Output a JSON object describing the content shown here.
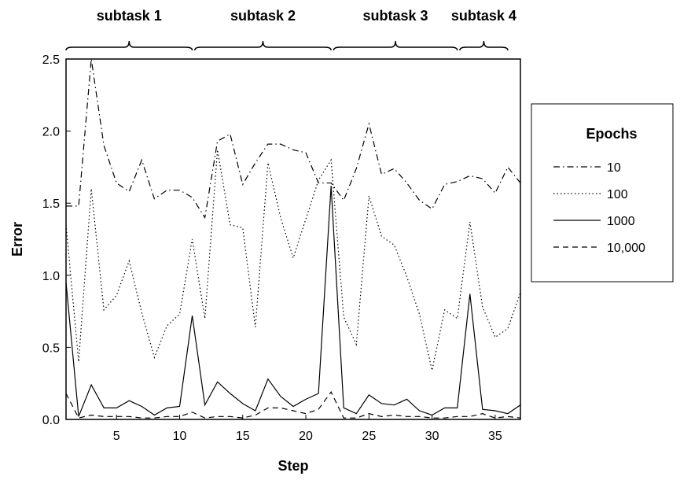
{
  "chart_data": {
    "type": "line",
    "xlabel": "Step",
    "ylabel": "Error",
    "xlim": [
      1,
      37
    ],
    "ylim": [
      0.0,
      2.5
    ],
    "xticks": [
      5,
      10,
      15,
      20,
      25,
      30,
      35
    ],
    "yticks": [
      0.0,
      0.5,
      1.0,
      1.5,
      2.0,
      2.5
    ],
    "ytick_labels": [
      "0.0",
      "0.5",
      "1.0",
      "1.5",
      "2.0",
      "2.5"
    ],
    "grid": false,
    "legend": {
      "title": "Epochs",
      "position": "right"
    },
    "subtasks": [
      {
        "label": "subtask 1",
        "start": 1,
        "end": 11
      },
      {
        "label": "subtask 2",
        "start": 11.2,
        "end": 22
      },
      {
        "label": "subtask 3",
        "start": 22.2,
        "end": 32
      },
      {
        "label": "subtask 4",
        "start": 32.2,
        "end": 36
      }
    ],
    "x": [
      1,
      2,
      3,
      4,
      5,
      6,
      7,
      8,
      9,
      10,
      11,
      12,
      13,
      14,
      15,
      16,
      17,
      18,
      19,
      20,
      21,
      22,
      23,
      24,
      25,
      26,
      27,
      28,
      29,
      30,
      31,
      32,
      33,
      34,
      35,
      36,
      37
    ],
    "series": [
      {
        "name": "10",
        "dash": "dashdot",
        "values": [
          1.48,
          1.48,
          2.5,
          1.9,
          1.64,
          1.58,
          1.8,
          1.53,
          1.59,
          1.59,
          1.54,
          1.4,
          1.93,
          1.98,
          1.63,
          1.78,
          1.91,
          1.91,
          1.87,
          1.85,
          1.64,
          1.64,
          1.52,
          1.74,
          2.05,
          1.7,
          1.74,
          1.64,
          1.52,
          1.46,
          1.63,
          1.65,
          1.69,
          1.67,
          1.57,
          1.75,
          1.64
        ]
      },
      {
        "name": "100",
        "dash": "dotted",
        "values": [
          1.35,
          0.4,
          1.6,
          0.76,
          0.86,
          1.1,
          0.74,
          0.43,
          0.65,
          0.73,
          1.25,
          0.7,
          1.87,
          1.35,
          1.33,
          0.64,
          1.78,
          1.4,
          1.12,
          1.39,
          1.66,
          1.8,
          0.71,
          0.52,
          1.55,
          1.27,
          1.21,
          0.99,
          0.73,
          0.34,
          0.76,
          0.7,
          1.37,
          0.78,
          0.57,
          0.63,
          0.88
        ]
      },
      {
        "name": "1000",
        "dash": "solid",
        "values": [
          0.95,
          0.02,
          0.24,
          0.08,
          0.08,
          0.13,
          0.09,
          0.03,
          0.08,
          0.09,
          0.72,
          0.1,
          0.26,
          0.18,
          0.11,
          0.06,
          0.28,
          0.16,
          0.09,
          0.14,
          0.18,
          1.62,
          0.08,
          0.04,
          0.17,
          0.11,
          0.1,
          0.14,
          0.06,
          0.03,
          0.08,
          0.08,
          0.87,
          0.07,
          0.06,
          0.04,
          0.1
        ]
      },
      {
        "name": "10,000",
        "dash": "dashed",
        "values": [
          0.18,
          0.01,
          0.03,
          0.02,
          0.02,
          0.02,
          0.01,
          0.01,
          0.02,
          0.02,
          0.05,
          0.01,
          0.02,
          0.02,
          0.01,
          0.03,
          0.08,
          0.08,
          0.06,
          0.04,
          0.07,
          0.19,
          0.01,
          0.01,
          0.04,
          0.02,
          0.03,
          0.02,
          0.02,
          0.01,
          0.01,
          0.02,
          0.02,
          0.04,
          0.01,
          0.02,
          0.01
        ]
      }
    ]
  }
}
